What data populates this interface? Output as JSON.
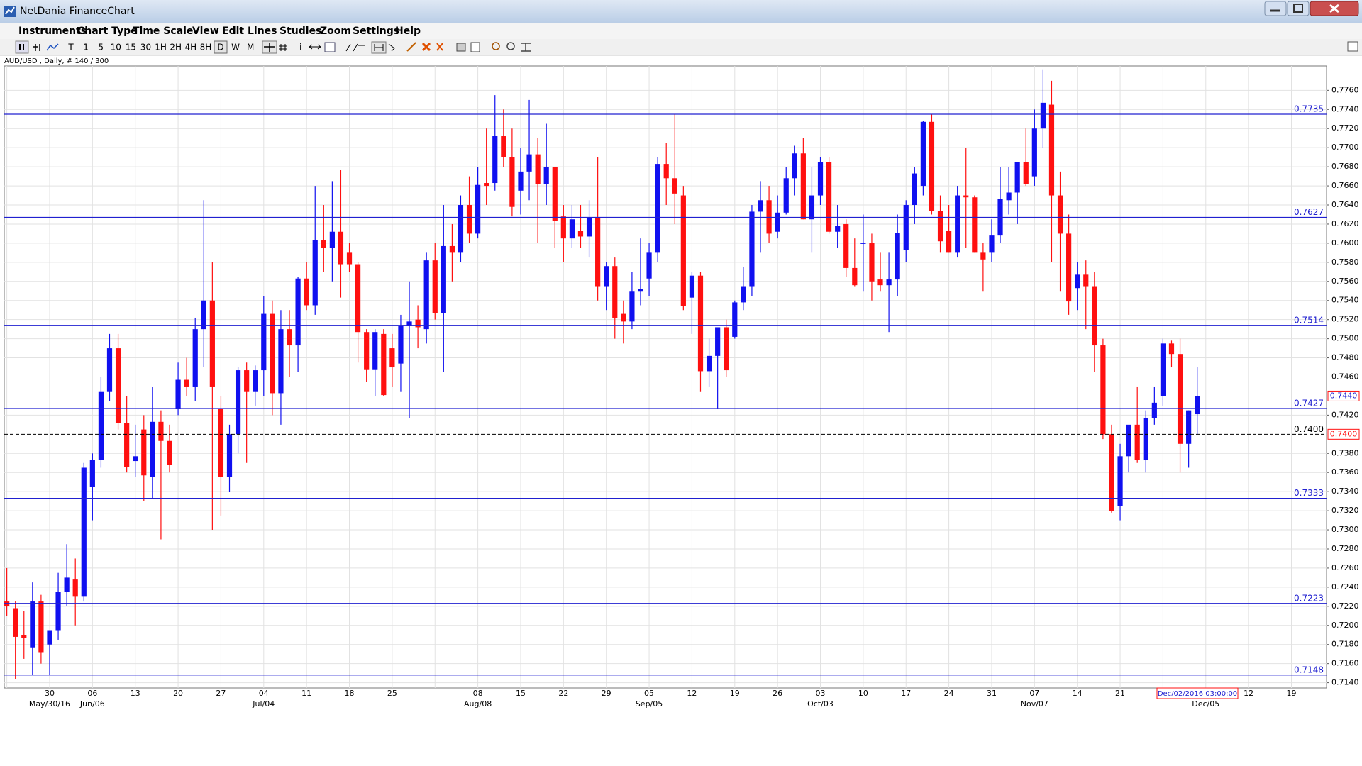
{
  "window": {
    "title": "NetDania FinanceChart"
  },
  "menu": [
    "Instruments",
    "Chart Type",
    "Time Scale",
    "View",
    "Edit",
    "Lines",
    "Studies",
    "Zoom",
    "Settings",
    "Help"
  ],
  "toolbar": {
    "intervals": [
      "T",
      "1",
      "5",
      "10",
      "15",
      "30",
      "1H",
      "2H",
      "4H",
      "8H",
      "D",
      "W",
      "M"
    ],
    "selected": "D"
  },
  "chart_data": {
    "type": "candlestick",
    "subtitle": "AUD/USD , Daily, # 140 / 300",
    "categories": [
      null,
      null,
      null,
      null,
      null,
      "30",
      null,
      null,
      null,
      null,
      "06",
      null,
      null,
      null,
      null,
      "13",
      null,
      null,
      null,
      null,
      "20",
      null,
      null,
      null,
      null,
      "27",
      null,
      null,
      null,
      null,
      "04",
      null,
      null,
      null,
      null,
      "11",
      null,
      null,
      null,
      null,
      "18",
      null,
      null,
      null,
      null,
      "25",
      null,
      null,
      null,
      null,
      null,
      null,
      null,
      null,
      null,
      "08",
      null,
      null,
      null,
      null,
      "15",
      null,
      null,
      null,
      null,
      "22",
      null,
      null,
      null,
      null,
      "29",
      null,
      null,
      null,
      null,
      "05",
      null,
      null,
      null,
      null,
      "12",
      null,
      null,
      null,
      null,
      "19",
      null,
      null,
      null,
      null,
      "26",
      null,
      null,
      null,
      null,
      "03",
      null,
      null,
      null,
      null,
      "10",
      null,
      null,
      null,
      null,
      "17",
      null,
      null,
      null,
      null,
      "24",
      null,
      null,
      null,
      null,
      "31",
      null,
      null,
      null,
      null,
      "07",
      null,
      null,
      null,
      null,
      "14",
      null,
      null,
      null,
      null,
      "21",
      null,
      null,
      null,
      null,
      null,
      null,
      null,
      null,
      null,
      null,
      null,
      null,
      null,
      null,
      "12",
      null,
      null,
      null,
      null,
      "19",
      null,
      null
    ],
    "months": [
      null,
      null,
      null,
      null,
      null,
      "May/30/16",
      null,
      null,
      null,
      null,
      "Jun/06",
      null,
      null,
      null,
      null,
      null,
      null,
      null,
      null,
      null,
      null,
      null,
      null,
      null,
      null,
      null,
      null,
      null,
      null,
      null,
      "Jul/04",
      null,
      null,
      null,
      null,
      null,
      null,
      null,
      null,
      null,
      null,
      null,
      null,
      null,
      null,
      null,
      null,
      null,
      null,
      null,
      null,
      null,
      null,
      null,
      null,
      "Aug/08",
      null,
      null,
      null,
      null,
      null,
      null,
      null,
      null,
      null,
      null,
      null,
      null,
      null,
      null,
      null,
      null,
      null,
      null,
      null,
      "Sep/05",
      null,
      null,
      null,
      null,
      null,
      null,
      null,
      null,
      null,
      null,
      null,
      null,
      null,
      null,
      null,
      null,
      null,
      null,
      null,
      "Oct/03",
      null,
      null,
      null,
      null,
      null,
      null,
      null,
      null,
      null,
      null,
      null,
      null,
      null,
      null,
      null,
      null,
      null,
      null,
      null,
      null,
      null,
      null,
      null,
      null,
      "Nov/07",
      null,
      null,
      null,
      null,
      null,
      null,
      null,
      null,
      null,
      null,
      null,
      null,
      null,
      null,
      null,
      null,
      null,
      null,
      null,
      "Dec/05",
      null,
      null,
      null,
      null,
      null,
      null,
      null,
      null,
      null,
      null,
      null,
      null
    ],
    "open": [
      0.7225,
      0.7218,
      0.719,
      0.7177,
      0.7225,
      0.718,
      0.7195,
      0.7235,
      0.7248,
      0.723,
      0.7345,
      0.7373,
      0.7445,
      0.749,
      0.7412,
      0.7372,
      0.7405,
      0.7355,
      0.7413,
      0.7393,
      0.7427,
      0.7457,
      0.745,
      0.751,
      0.754,
      0.7427,
      0.7355,
      0.74,
      0.7467,
      0.7445,
      0.7467,
      0.7526,
      0.7443,
      0.751,
      0.7493,
      0.7563,
      0.7535,
      0.7603,
      0.7595,
      0.7612,
      0.759,
      0.7578,
      0.7507,
      0.7468,
      0.7505,
      0.749,
      0.7474,
      0.7514,
      0.752,
      0.751,
      0.7582,
      0.7527,
      0.7597,
      0.759,
      0.764,
      0.761,
      0.7663,
      0.7663,
      0.7712,
      0.769,
      0.7655,
      0.7675,
      0.7693,
      0.7662,
      0.768,
      0.7628,
      0.7605,
      0.7613,
      0.7607,
      0.7626,
      0.7555,
      0.7576,
      0.7526,
      0.7518,
      0.755,
      0.7563,
      0.759,
      0.7683,
      0.7668,
      0.765,
      0.7543,
      0.7566,
      0.7466,
      0.7482,
      0.7512,
      0.7502,
      0.7538,
      0.7555,
      0.7633,
      0.7645,
      0.7612,
      0.7632,
      0.7668,
      0.7694,
      0.7625,
      0.765,
      0.7685,
      0.7612,
      0.762,
      0.7574,
      0.76,
      0.76,
      0.7562,
      0.7556,
      0.7562,
      0.7593,
      0.764,
      0.766,
      0.7727,
      0.7634,
      0.7613,
      0.759,
      0.765,
      0.7648,
      0.759,
      0.759,
      0.7608,
      0.7645,
      0.7653,
      0.7685,
      0.767,
      0.772,
      0.7745,
      0.765,
      0.761,
      0.7553,
      0.7567,
      0.7555,
      0.7493,
      0.74,
      0.7325,
      0.7377,
      0.741,
      0.7373,
      0.7417,
      0.744,
      0.7495,
      0.7484,
      0.739,
      0.7421,
      null,
      null,
      null,
      null,
      null,
      null,
      null,
      null,
      null,
      null,
      null,
      null,
      null
    ],
    "high": [
      0.726,
      0.7225,
      0.7215,
      0.7245,
      0.7232,
      0.7195,
      0.7255,
      0.7285,
      0.727,
      0.737,
      0.738,
      0.746,
      0.7505,
      0.7505,
      0.744,
      0.741,
      0.742,
      0.745,
      0.7425,
      0.741,
      0.7475,
      0.748,
      0.7522,
      0.7645,
      0.758,
      0.744,
      0.741,
      0.747,
      0.7475,
      0.7472,
      0.7545,
      0.754,
      0.753,
      0.753,
      0.7565,
      0.758,
      0.766,
      0.764,
      0.7665,
      0.7677,
      0.76,
      0.758,
      0.751,
      0.751,
      0.751,
      0.7505,
      0.7525,
      0.756,
      0.7535,
      0.759,
      0.76,
      0.764,
      0.762,
      0.765,
      0.767,
      0.768,
      0.772,
      0.7755,
      0.774,
      0.772,
      0.77,
      0.775,
      0.771,
      0.7725,
      0.768,
      0.764,
      0.764,
      0.764,
      0.7645,
      0.769,
      0.758,
      0.7585,
      0.754,
      0.757,
      0.7605,
      0.76,
      0.769,
      0.7705,
      0.7735,
      0.766,
      0.757,
      0.757,
      0.75,
      0.751,
      0.752,
      0.754,
      0.7575,
      0.764,
      0.7665,
      0.766,
      0.765,
      0.768,
      0.7702,
      0.771,
      0.768,
      0.769,
      0.769,
      0.764,
      0.7625,
      0.7605,
      0.763,
      0.761,
      0.759,
      0.759,
      0.763,
      0.7645,
      0.768,
      0.7728,
      0.7735,
      0.765,
      0.764,
      0.766,
      0.77,
      0.765,
      0.76,
      0.7625,
      0.768,
      0.768,
      0.7685,
      0.772,
      0.774,
      0.7782,
      0.777,
      0.7675,
      0.763,
      0.758,
      0.7582,
      0.757,
      0.75,
      0.741,
      0.739,
      0.7405,
      0.745,
      0.7425,
      0.745,
      0.75,
      0.7498,
      0.75,
      0.7425,
      0.747,
      null,
      null,
      null,
      null,
      null,
      null,
      null,
      null,
      null,
      null,
      null,
      null,
      null
    ],
    "low": [
      0.721,
      0.7144,
      0.7165,
      0.7148,
      0.716,
      0.7148,
      0.7185,
      0.722,
      0.72,
      0.7225,
      0.731,
      0.7365,
      0.7435,
      0.7405,
      0.736,
      0.7355,
      0.733,
      0.7332,
      0.729,
      0.736,
      0.742,
      0.744,
      0.7435,
      0.747,
      0.73,
      0.7315,
      0.734,
      0.738,
      0.737,
      0.743,
      0.744,
      0.742,
      0.741,
      0.746,
      0.7465,
      0.753,
      0.7525,
      0.757,
      0.756,
      0.7543,
      0.757,
      0.7475,
      0.7455,
      0.744,
      0.744,
      0.745,
      0.7445,
      0.7417,
      0.749,
      0.7495,
      0.752,
      0.7465,
      0.756,
      0.758,
      0.76,
      0.7605,
      0.764,
      0.7655,
      0.768,
      0.7628,
      0.763,
      0.7645,
      0.76,
      0.764,
      0.7595,
      0.758,
      0.7595,
      0.7595,
      0.7585,
      0.754,
      0.753,
      0.75,
      0.7495,
      0.751,
      0.7535,
      0.7545,
      0.758,
      0.764,
      0.762,
      0.753,
      0.7505,
      0.7445,
      0.745,
      0.7427,
      0.746,
      0.75,
      0.753,
      0.7545,
      0.759,
      0.76,
      0.7605,
      0.763,
      0.765,
      0.7625,
      0.759,
      0.764,
      0.761,
      0.7595,
      0.7565,
      0.7555,
      0.755,
      0.754,
      0.755,
      0.7507,
      0.7545,
      0.758,
      0.762,
      0.765,
      0.763,
      0.759,
      0.759,
      0.7585,
      0.7595,
      0.759,
      0.755,
      0.758,
      0.76,
      0.763,
      0.762,
      0.766,
      0.766,
      0.77,
      0.758,
      0.755,
      0.7525,
      0.753,
      0.751,
      0.7465,
      0.7395,
      0.7318,
      0.731,
      0.736,
      0.737,
      0.736,
      0.741,
      0.743,
      0.747,
      0.736,
      0.7365,
      0.74,
      null,
      null,
      null,
      null,
      null,
      null,
      null,
      null,
      null,
      null,
      null,
      null,
      null
    ],
    "close": [
      0.722,
      0.7188,
      0.7187,
      0.7225,
      0.7172,
      0.7195,
      0.7235,
      0.725,
      0.723,
      0.7365,
      0.7373,
      0.7445,
      0.749,
      0.7412,
      0.7366,
      0.7377,
      0.7357,
      0.7413,
      0.7393,
      0.7368,
      0.7457,
      0.745,
      0.751,
      0.754,
      0.745,
      0.7355,
      0.74,
      0.7467,
      0.7445,
      0.7467,
      0.7526,
      0.7443,
      0.751,
      0.7493,
      0.7563,
      0.7535,
      0.7603,
      0.7595,
      0.7612,
      0.7578,
      0.7578,
      0.7507,
      0.7468,
      0.7507,
      0.7441,
      0.747,
      0.7514,
      0.7518,
      0.7512,
      0.7582,
      0.7527,
      0.7597,
      0.759,
      0.764,
      0.761,
      0.7661,
      0.766,
      0.7712,
      0.769,
      0.7638,
      0.7675,
      0.7693,
      0.7662,
      0.768,
      0.7623,
      0.7605,
      0.7625,
      0.7607,
      0.7626,
      0.7555,
      0.7576,
      0.7522,
      0.7518,
      0.755,
      0.7552,
      0.759,
      0.7683,
      0.7668,
      0.7652,
      0.7534,
      0.7566,
      0.7466,
      0.7482,
      0.7512,
      0.7467,
      0.7538,
      0.7555,
      0.7633,
      0.7645,
      0.761,
      0.7632,
      0.7668,
      0.7694,
      0.7625,
      0.765,
      0.7685,
      0.7612,
      0.7618,
      0.7574,
      0.7556,
      0.76,
      0.756,
      0.7556,
      0.7562,
      0.7611,
      0.764,
      0.7673,
      0.7727,
      0.7634,
      0.7602,
      0.759,
      0.765,
      0.7648,
      0.759,
      0.7583,
      0.7608,
      0.7646,
      0.7653,
      0.7685,
      0.7662,
      0.772,
      0.7747,
      0.765,
      0.761,
      0.7539,
      0.7567,
      0.7555,
      0.7493,
      0.74,
      0.732,
      0.7377,
      0.741,
      0.7373,
      0.7417,
      0.7433,
      0.7495,
      0.7484,
      0.739,
      0.7425,
      0.744,
      null,
      null,
      null,
      null,
      null,
      null,
      null,
      null,
      null,
      null,
      null,
      null,
      null
    ],
    "up_color": "#1010f0",
    "down_color": "#ff1010",
    "ylim": [
      0.71345,
      0.77855
    ],
    "yticks": [
      {
        "value": 0.776,
        "label": "0.7760"
      },
      {
        "value": 0.774,
        "label": "0.7740"
      },
      {
        "value": 0.772,
        "label": "0.7720"
      },
      {
        "value": 0.77,
        "label": "0.7700"
      },
      {
        "value": 0.768,
        "label": "0.7680"
      },
      {
        "value": 0.766,
        "label": "0.7660"
      },
      {
        "value": 0.764,
        "label": "0.7640"
      },
      {
        "value": 0.762,
        "label": "0.7620"
      },
      {
        "value": 0.76,
        "label": "0.7600"
      },
      {
        "value": 0.758,
        "label": "0.7580"
      },
      {
        "value": 0.756,
        "label": "0.7560"
      },
      {
        "value": 0.754,
        "label": "0.7540"
      },
      {
        "value": 0.752,
        "label": "0.7520"
      },
      {
        "value": 0.75,
        "label": "0.7500"
      },
      {
        "value": 0.748,
        "label": "0.7480"
      },
      {
        "value": 0.746,
        "label": "0.7460"
      },
      {
        "value": 0.742,
        "label": "0.7420"
      },
      {
        "value": 0.738,
        "label": "0.7380"
      },
      {
        "value": 0.736,
        "label": "0.7360"
      },
      {
        "value": 0.734,
        "label": "0.7340"
      },
      {
        "value": 0.732,
        "label": "0.7320"
      },
      {
        "value": 0.73,
        "label": "0.7300"
      },
      {
        "value": 0.728,
        "label": "0.7280"
      },
      {
        "value": 0.726,
        "label": "0.7260"
      },
      {
        "value": 0.724,
        "label": "0.7240"
      },
      {
        "value": 0.722,
        "label": "0.7220"
      },
      {
        "value": 0.72,
        "label": "0.7200"
      },
      {
        "value": 0.718,
        "label": "0.7180"
      },
      {
        "value": 0.716,
        "label": "0.7160"
      },
      {
        "value": 0.714,
        "label": "0.7140"
      }
    ],
    "grid": true,
    "levels": [
      0.7735,
      0.7627,
      0.7514,
      0.7427,
      0.7333,
      0.7223,
      0.7148
    ],
    "level_color": "#2020d0",
    "last_price": {
      "value": 0.744,
      "label": "0.7440"
    },
    "cursor_price": {
      "value": 0.74,
      "label": "0.7400"
    },
    "cursor_date": "Dec/02/2016 03:00:00"
  }
}
